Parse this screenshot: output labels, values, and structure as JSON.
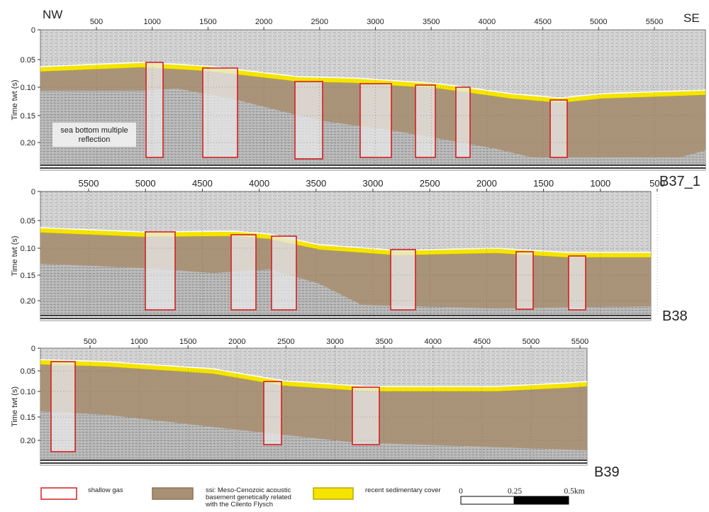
{
  "panels": [
    {
      "name": "B37_1",
      "left_label": "NW",
      "right_label": "SE",
      "x_ticks": [
        "500",
        "1000",
        "1500",
        "2000",
        "2500",
        "3000",
        "3500",
        "4000",
        "4500",
        "5000",
        "5500"
      ],
      "y_label": "Time twt (s)",
      "y_ticks": [
        "0",
        "0.05",
        "0.10",
        "0.15",
        "0.20"
      ],
      "annotation": [
        "sea bottom multiple",
        "reflection"
      ]
    },
    {
      "name": "B38",
      "x_ticks": [
        "5500",
        "5000",
        "4500",
        "4000",
        "3500",
        "3000",
        "2500",
        "2000",
        "1500",
        "1000",
        "500"
      ],
      "y_label": "Time twt (s)",
      "y_ticks": [
        "0",
        "0.05",
        "0.10",
        "0.15",
        "0.20"
      ]
    },
    {
      "name": "B39",
      "x_ticks": [
        "500",
        "1000",
        "1500",
        "2000",
        "2500",
        "3000",
        "3500",
        "4000",
        "4500",
        "5000",
        "5500"
      ],
      "y_label": "Time twt (s)",
      "y_ticks": [
        "0",
        "0.05",
        "0.10",
        "0.15",
        "0.20"
      ]
    }
  ],
  "legend": [
    {
      "lines": [
        "shallow gas"
      ]
    },
    {
      "lines": [
        "ssi: Meso-Cenozoic acoustic",
        "basement genetically related",
        "with the Cilento Flysch"
      ]
    },
    {
      "lines": [
        "recent sedimentary cover"
      ]
    }
  ],
  "scale_bar": [
    "0",
    "0.25",
    "0.5km"
  ]
}
